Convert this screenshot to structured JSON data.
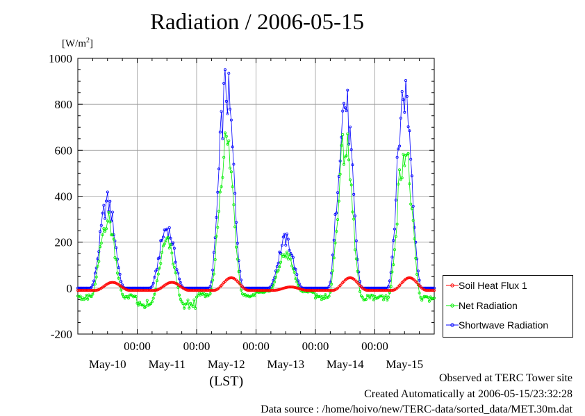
{
  "title": "Radiation / 2006-05-15",
  "chart_data": {
    "type": "line",
    "title": "Radiation / 2006-05-15",
    "ylabel": "[W/m2]",
    "xlabel": "(LST)",
    "ylim": [
      -200,
      1000
    ],
    "yticks": [
      "1000",
      "800",
      "600",
      "400",
      "200",
      "0",
      "-200"
    ],
    "ytick_values": [
      1000,
      800,
      600,
      400,
      200,
      0,
      -200
    ],
    "xlim_hours": [
      0,
      144
    ],
    "xticks_time": [
      "00:00",
      "00:00",
      "00:00",
      "00:00",
      "00:00"
    ],
    "xticks_date": [
      "May-10",
      "May-11",
      "May-12",
      "May-13",
      "May-14",
      "May-15"
    ],
    "grid": true,
    "legend_position": "right",
    "series": [
      {
        "name": "Soil Heat Flux 1",
        "color": "#ff0000",
        "daily_peaks": [
          25,
          25,
          45,
          5,
          45,
          45
        ],
        "night": -10
      },
      {
        "name": "Net Radiation",
        "color": "#00ee00",
        "daily_peaks": [
          300,
          200,
          630,
          150,
          620,
          600
        ],
        "night": [
          -40,
          -70,
          -30,
          -15,
          -40,
          -45
        ]
      },
      {
        "name": "Shortwave Radiation",
        "color": "#0000ff",
        "daily_peaks": [
          370,
          260,
          860,
          210,
          805,
          855
        ],
        "night": 0
      }
    ]
  },
  "legend": {
    "items": [
      {
        "label": "Soil Heat Flux 1",
        "color": "#ff0000"
      },
      {
        "label": "Net Radiation",
        "color": "#00ee00"
      },
      {
        "label": "Shortwave Radiation",
        "color": "#0000ff"
      }
    ]
  },
  "unit_label": "[W/m",
  "unit_sup": "2",
  "unit_close": "]",
  "footer": {
    "line1": "Observed at TERC Tower site",
    "line2": "Created Automatically at 2006-05-15/23:32:28",
    "line3": "Data source : /home/hoivo/new/TERC-data/sorted_data/MET.30m.dat"
  }
}
